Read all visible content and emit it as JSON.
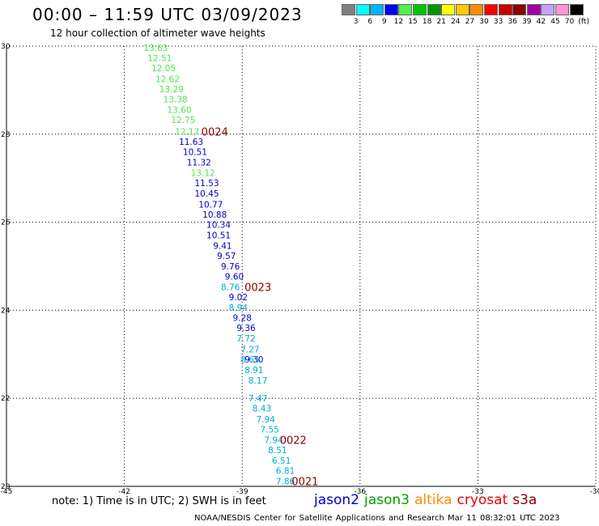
{
  "header": {
    "title": "00:00 – 11:59 UTC 03/09/2023",
    "subtitle": "12 hour collection of altimeter wave heights"
  },
  "legend": {
    "colors": [
      "#808080",
      "#00ffff",
      "#00b4ff",
      "#0000ff",
      "#50f050",
      "#00c800",
      "#009600",
      "#ffff00",
      "#ffc800",
      "#ff8c00",
      "#ff0000",
      "#c80000",
      "#8c0000",
      "#a000a0",
      "#c8a0ff",
      "#ff96d2",
      "#000000"
    ],
    "ticks": [
      "3",
      "6",
      "9",
      "12",
      "15",
      "18",
      "21",
      "24",
      "27",
      "30",
      "33",
      "36",
      "39",
      "42",
      "45",
      "70",
      "(ft)"
    ]
  },
  "chart_data": {
    "type": "scatter",
    "xlabel": "",
    "ylabel": "",
    "xlim": [
      -45,
      -30
    ],
    "ylim": [
      20,
      30
    ],
    "x_ticks": [
      "-45",
      "-42",
      "-39",
      "-36",
      "-33",
      "-30"
    ],
    "y_ticks": [
      "20",
      "22",
      "24",
      "26",
      "28",
      "30"
    ],
    "grid": true,
    "series": [
      {
        "name": "jason2",
        "color": "#0000c8",
        "points": [
          {
            "x": -40.3,
            "y": 27.83,
            "label": "11.63"
          },
          {
            "x": -40.2,
            "y": 27.6,
            "label": "10.51"
          },
          {
            "x": -40.1,
            "y": 27.36,
            "label": "11.32"
          },
          {
            "x": -39.9,
            "y": 26.89,
            "label": "11.53"
          },
          {
            "x": -39.9,
            "y": 26.65,
            "label": "10.45"
          },
          {
            "x": -39.8,
            "y": 26.41,
            "label": "10.77"
          },
          {
            "x": -39.7,
            "y": 26.18,
            "label": "10.88"
          },
          {
            "x": -39.6,
            "y": 25.95,
            "label": "10.34"
          },
          {
            "x": -39.6,
            "y": 25.71,
            "label": "10.51"
          },
          {
            "x": -39.5,
            "y": 25.47,
            "label": "9.41"
          },
          {
            "x": -39.4,
            "y": 25.24,
            "label": "9.57"
          },
          {
            "x": -39.3,
            "y": 25.0,
            "label": "9.76"
          },
          {
            "x": -39.2,
            "y": 24.77,
            "label": "9.60"
          },
          {
            "x": -39.1,
            "y": 24.3,
            "label": "9.02"
          },
          {
            "x": -39.0,
            "y": 23.83,
            "label": "9.28"
          },
          {
            "x": -38.9,
            "y": 23.6,
            "label": "9.36"
          },
          {
            "x": -38.7,
            "y": 22.89,
            "label": "9.30"
          }
        ]
      },
      {
        "name": "jason3",
        "color": "#50e650",
        "points": [
          {
            "x": -41.2,
            "y": 29.96,
            "label": "13.63"
          },
          {
            "x": -41.1,
            "y": 29.73,
            "label": "12.51"
          },
          {
            "x": -41.0,
            "y": 29.5,
            "label": "12.05"
          },
          {
            "x": -40.9,
            "y": 29.26,
            "label": "12.62"
          },
          {
            "x": -40.8,
            "y": 29.03,
            "label": "13.29"
          },
          {
            "x": -40.7,
            "y": 28.8,
            "label": "13.38"
          },
          {
            "x": -40.6,
            "y": 28.56,
            "label": "13.60"
          },
          {
            "x": -40.5,
            "y": 28.33,
            "label": "12.75"
          },
          {
            "x": -40.4,
            "y": 28.06,
            "label": "12.17"
          },
          {
            "x": -40.0,
            "y": 27.12,
            "label": "13.12"
          }
        ]
      },
      {
        "name": "altika",
        "color": "#00aad2",
        "points": [
          {
            "x": -39.3,
            "y": 24.53,
            "label": "8.76"
          },
          {
            "x": -39.1,
            "y": 24.06,
            "label": "8.94"
          },
          {
            "x": -38.9,
            "y": 23.36,
            "label": "7.72"
          },
          {
            "x": -38.8,
            "y": 23.12,
            "label": "7.27"
          },
          {
            "x": -38.8,
            "y": 22.89,
            "label": "8.65"
          },
          {
            "x": -38.7,
            "y": 22.65,
            "label": "8.91"
          },
          {
            "x": -38.6,
            "y": 22.41,
            "label": "8.17"
          },
          {
            "x": -38.6,
            "y": 22.0,
            "label": "7.47"
          },
          {
            "x": -38.5,
            "y": 21.77,
            "label": "8.43"
          },
          {
            "x": -38.4,
            "y": 21.53,
            "label": "7.94"
          },
          {
            "x": -38.3,
            "y": 21.3,
            "label": "7.55"
          },
          {
            "x": -38.2,
            "y": 21.06,
            "label": "7.94"
          },
          {
            "x": -38.1,
            "y": 20.83,
            "label": "8.51"
          },
          {
            "x": -38.0,
            "y": 20.59,
            "label": "6.51"
          },
          {
            "x": -37.9,
            "y": 20.36,
            "label": "6.81"
          },
          {
            "x": -37.9,
            "y": 20.12,
            "label": "7.86"
          }
        ]
      }
    ],
    "annotations": [
      {
        "x": -39.7,
        "y": 28.06,
        "label": "0024",
        "color": "#8c0000"
      },
      {
        "x": -38.6,
        "y": 24.53,
        "label": "0023",
        "color": "#8c0000"
      },
      {
        "x": -37.7,
        "y": 21.06,
        "label": "0022",
        "color": "#8c0000"
      },
      {
        "x": -37.4,
        "y": 20.12,
        "label": "0021",
        "color": "#8c0000"
      }
    ]
  },
  "note": "note:  1) Time is in UTC;  2) SWH is in feet",
  "satellites": [
    {
      "label": "jason2",
      "color": "#0000c8"
    },
    {
      "label": "jason3",
      "color": "#00a000"
    },
    {
      "label": "altika",
      "color": "#ff8c00"
    },
    {
      "label": "cryosat",
      "color": "#e60000"
    },
    {
      "label": "s3a",
      "color": "#8c0000"
    }
  ],
  "footer": "NOAA/NESDIS Center for Satellite Applications and Research    Mar 11 08:32:01 UTC 2023"
}
